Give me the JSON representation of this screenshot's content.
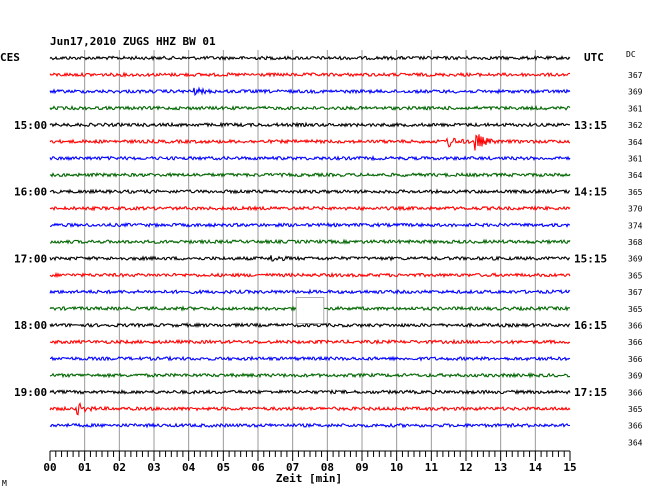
{
  "chart_data": {
    "type": "line",
    "title": "Jun17,2010   ZUGS HHZ BW 01",
    "left_label": "CES",
    "right_label": "UTC",
    "dc_label": "DC",
    "xlabel": "Zeit [min]",
    "xlim": [
      0,
      15
    ],
    "x_tick_labels": [
      "00",
      "01",
      "02",
      "03",
      "04",
      "05",
      "06",
      "07",
      "08",
      "09",
      "10",
      "11",
      "12",
      "13",
      "14",
      "15"
    ],
    "trace_interval_min": 15,
    "trace_colors": [
      "#000000",
      "#ff0000",
      "#0000ff",
      "#006600"
    ],
    "cet_hour_labels": [
      {
        "trace": 4,
        "label": "15:00"
      },
      {
        "trace": 8,
        "label": "16:00"
      },
      {
        "trace": 12,
        "label": "17:00"
      },
      {
        "trace": 16,
        "label": "18:00"
      },
      {
        "trace": 20,
        "label": "19:00"
      }
    ],
    "utc_labels": [
      {
        "trace": 4,
        "label": "13:15"
      },
      {
        "trace": 8,
        "label": "14:15"
      },
      {
        "trace": 12,
        "label": "15:15"
      },
      {
        "trace": 16,
        "label": "16:15"
      },
      {
        "trace": 20,
        "label": "17:15"
      }
    ],
    "dc_values": [
      367,
      369,
      361,
      362,
      364,
      361,
      364,
      365,
      370,
      374,
      368,
      369,
      365,
      367,
      365,
      366,
      366,
      366,
      369,
      366,
      365,
      366,
      364
    ],
    "data_gaps": [
      {
        "trace": 15,
        "x_start": 7.1,
        "x_end": 7.9
      }
    ],
    "events": [
      {
        "trace": 5,
        "x_min": 11.5,
        "amplitude": "medium"
      },
      {
        "trace": 5,
        "x_min": 12.3,
        "amplitude": "large"
      },
      {
        "trace": 21,
        "x_min": 0.8,
        "amplitude": "medium"
      },
      {
        "trace": 2,
        "x_min": 4.2,
        "amplitude": "small"
      },
      {
        "trace": 12,
        "x_min": 6.4,
        "amplitude": "small"
      }
    ],
    "footnote": "M"
  }
}
